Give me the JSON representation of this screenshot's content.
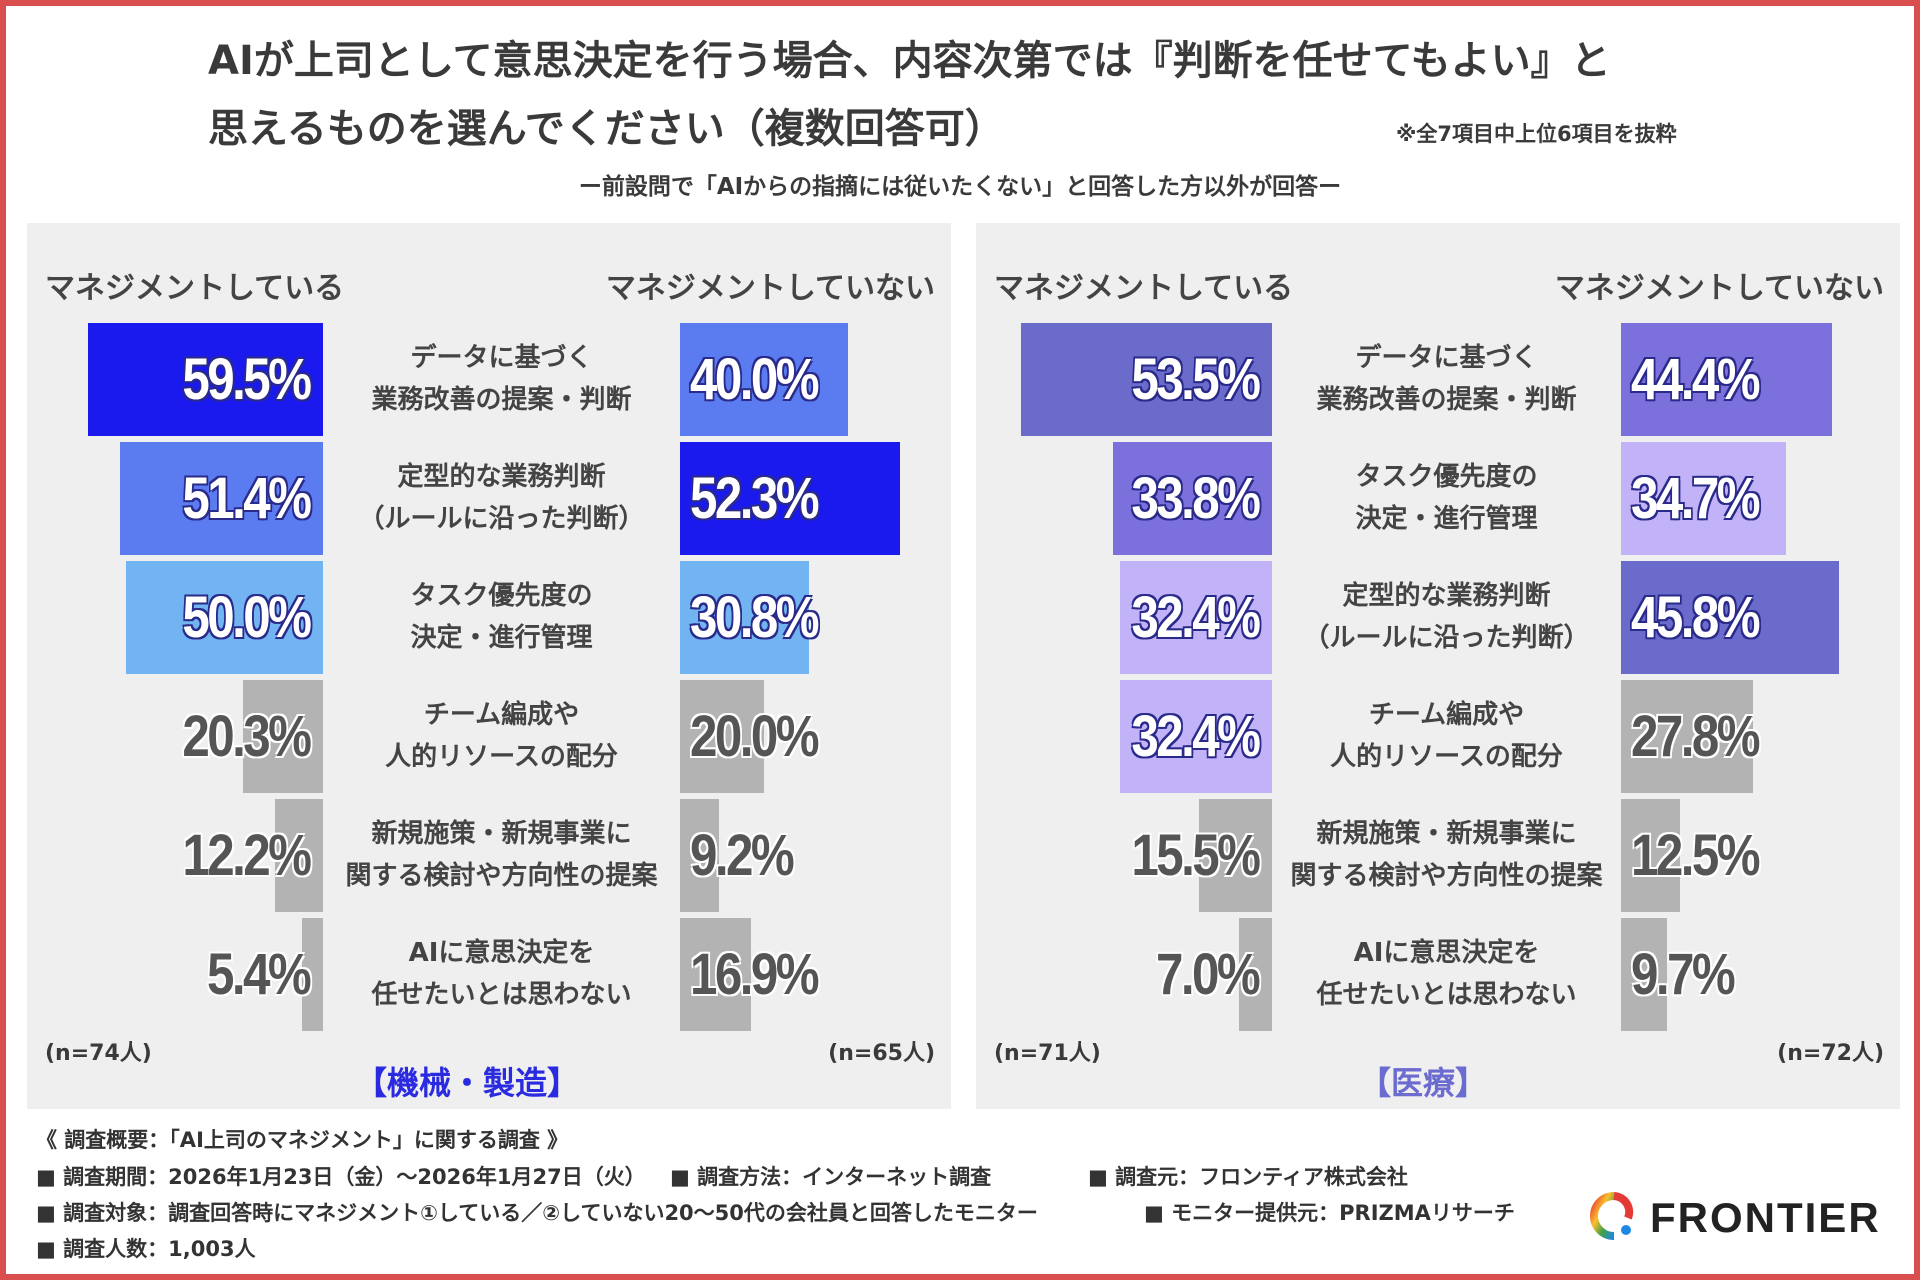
{
  "title": [
    "AIが上司として意思決定を行う場合、内容次第では『判断を任せてもよい』と",
    "思えるものを選んでください（複数回答可）"
  ],
  "note": "※全7項目中上位6項目を抜粋",
  "subtitle": "ー前設問で「AIからの指摘には従いたくない」と回答した方以外が回答ー",
  "chart_data": [
    {
      "type": "bar",
      "category": "【機械・製造】",
      "header_left": "マネジメントしている",
      "header_right": "マネジメントしていない",
      "n_left": "(n=74人)",
      "n_right": "(n=65人)",
      "accent": "#2a2ae0",
      "rows": [
        {
          "label": "データに基づく\n業務改善の提案・判断",
          "left": 59.5,
          "right": 40.0
        },
        {
          "label": "定型的な業務判断\n（ルールに沿った判断）",
          "left": 51.4,
          "right": 52.3
        },
        {
          "label": "タスク優先度の\n決定・進行管理",
          "left": 50.0,
          "right": 30.8
        },
        {
          "label": "チーム編成や\n人的リソースの配分",
          "left": 20.3,
          "right": 20.0
        },
        {
          "label": "新規施策・新規事業に\n関する検討や方向性の提案",
          "left": 12.2,
          "right": 9.2
        },
        {
          "label": "AIに意思決定を\n任せたいとは思わない",
          "left": 5.4,
          "right": 16.9
        }
      ],
      "rank_colors": [
        "#1a1aee",
        "#5b7cf0",
        "#72b4f2"
      ],
      "other_color": "#b3b3b3"
    },
    {
      "type": "bar",
      "category": "【医療】",
      "header_left": "マネジメントしている",
      "header_right": "マネジメントしていない",
      "n_left": "(n=71人)",
      "n_right": "(n=72人)",
      "accent": "#6b6bd0",
      "rows": [
        {
          "label": "データに基づく\n業務改善の提案・判断",
          "left": 53.5,
          "right": 44.4
        },
        {
          "label": "タスク優先度の\n決定・進行管理",
          "left": 33.8,
          "right": 34.7
        },
        {
          "label": "定型的な業務判断\n（ルールに沿った判断）",
          "left": 32.4,
          "right": 45.8
        },
        {
          "label": "チーム編成や\n人的リソースの配分",
          "left": 32.4,
          "right": 27.8
        },
        {
          "label": "新規施策・新規事業に\n関する検討や方向性の提案",
          "left": 15.5,
          "right": 12.5
        },
        {
          "label": "AIに意思決定を\n任せたいとは思わない",
          "left": 7.0,
          "right": 9.7
        }
      ],
      "rank_colors": [
        "#6b6bcc",
        "#7b70dc",
        "#c2b2f8"
      ],
      "other_color": "#b3b3b3"
    }
  ],
  "footer": {
    "heading": "《 調査概要：「AI上司のマネジメント」に関する調査 》",
    "period": "■ 調査期間：2026年1月23日（金）～2026年1月27日（火）",
    "method": "■ 調査方法：インターネット調査",
    "org": "■ 調査元：フロンティア株式会社",
    "target": "■ 調査対象：調査回答時にマネジメント①している／②していない20～50代の会社員と回答したモニター",
    "provider": "■ モニター提供元：PRIZMAリサーチ",
    "count": "■ 調査人数：1,003人"
  },
  "logo": "FRONTIER"
}
